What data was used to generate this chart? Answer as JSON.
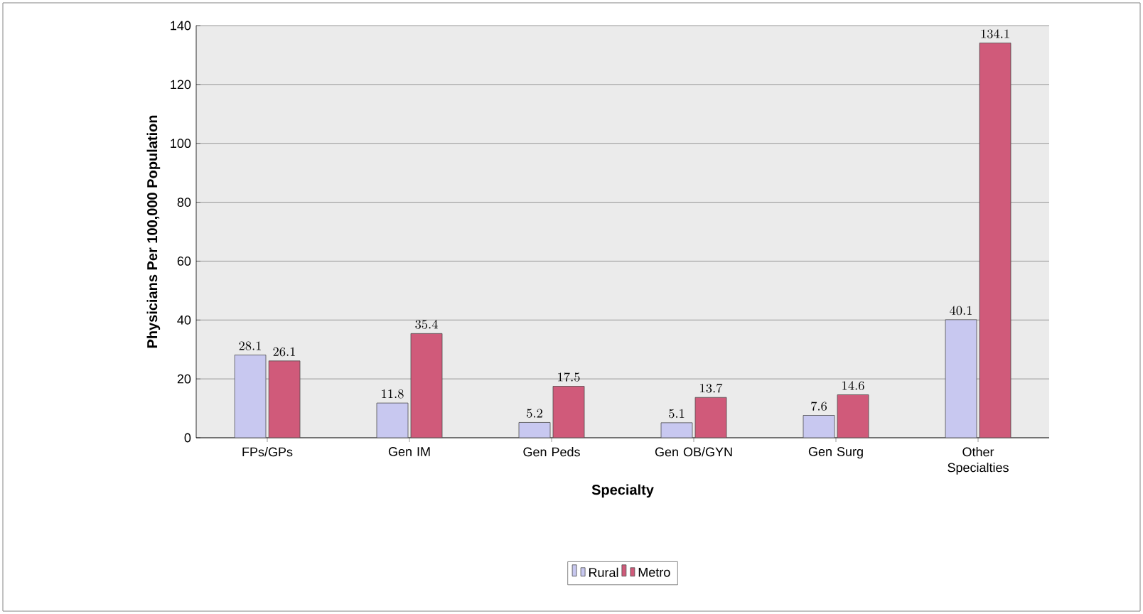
{
  "chart_data": {
    "type": "bar",
    "xlabel": "Specialty",
    "ylabel": "Physicians Per 100,000 Population",
    "categories": [
      "FPs/GPs",
      "Gen IM",
      "Gen Peds",
      "Gen OB/GYN",
      "Gen Surg",
      "Other Specialties"
    ],
    "series": [
      {
        "name": "Rural",
        "color": "#c8c8f0",
        "values": [
          28.1,
          11.8,
          5.2,
          5.1,
          7.6,
          40.1
        ]
      },
      {
        "name": "Metro",
        "color": "#d05a7a",
        "values": [
          26.1,
          35.4,
          17.5,
          13.7,
          14.6,
          134.1
        ]
      }
    ],
    "ylim": [
      0,
      140
    ],
    "yticks": [
      0,
      20,
      40,
      60,
      80,
      100,
      120,
      140
    ],
    "grid": "y",
    "legend": "bottom",
    "data_labels": true
  }
}
